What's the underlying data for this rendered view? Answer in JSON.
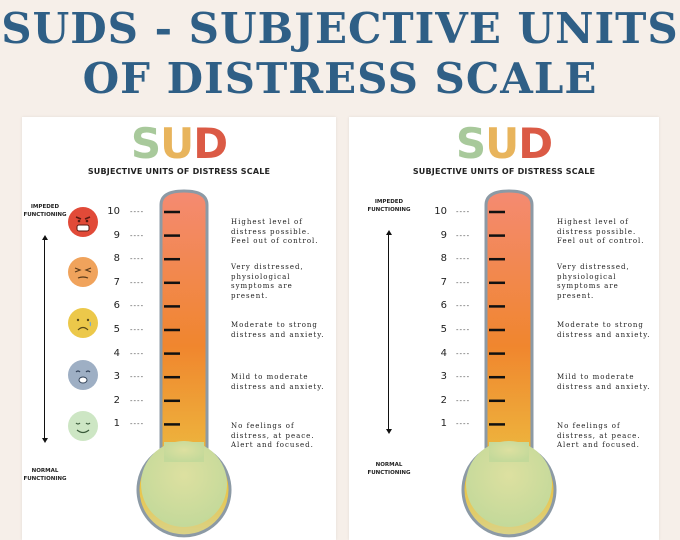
{
  "title": {
    "line1": "SUDS - SUBJECTIVE UNITS",
    "line2": "OF DISTRESS SCALE"
  },
  "cards": [
    {
      "logo": {
        "s": "S",
        "u": "U",
        "d": "D"
      },
      "subtitle": "SUBJECTIVE UNITS OF DISTRESS SCALE",
      "top_label": "IMPEDED FUNCTIONING",
      "bottom_label": "NORMAL FUNCTIONING",
      "numbers": [
        "10",
        "9",
        "8",
        "7",
        "6",
        "5",
        "4",
        "3",
        "2",
        "1"
      ],
      "dash": "----",
      "descriptions": [
        "Highest level of distress possible. Feel out of control.",
        "Very distressed, physiological symptoms are present.",
        "Moderate to strong distress and anxiety.",
        "Mild to moderate distress and anxiety.",
        "No feelings of distress, at peace. Alert and focused."
      ],
      "faces": [
        "angry-face-icon",
        "annoyed-face-icon",
        "sad-face-icon",
        "worried-face-icon",
        "calm-face-icon"
      ]
    },
    {
      "logo": {
        "s": "S",
        "u": "U",
        "d": "D"
      },
      "subtitle": "SUBJECTIVE UNITS OF DISTRESS SCALE",
      "top_label": "IMPEDED FUNCTIONING",
      "bottom_label": "NORMAL FUNCTIONING",
      "numbers": [
        "10",
        "9",
        "8",
        "7",
        "6",
        "5",
        "4",
        "3",
        "2",
        "1"
      ],
      "dash": "----",
      "descriptions": [
        "Highest level of distress possible. Feel out of control.",
        "Very distressed, physiological symptoms are present.",
        "Moderate to strong distress and anxiety.",
        "Mild to moderate distress and anxiety.",
        "No feelings of distress, at peace. Alert and focused."
      ]
    }
  ],
  "colors": {
    "title": "#2f5f86",
    "thermo_top": "#f48a72",
    "thermo_mid": "#f0862e",
    "thermo_low": "#ecc342",
    "bulb": "#c9dc98",
    "outline": "#8c9aa5"
  }
}
